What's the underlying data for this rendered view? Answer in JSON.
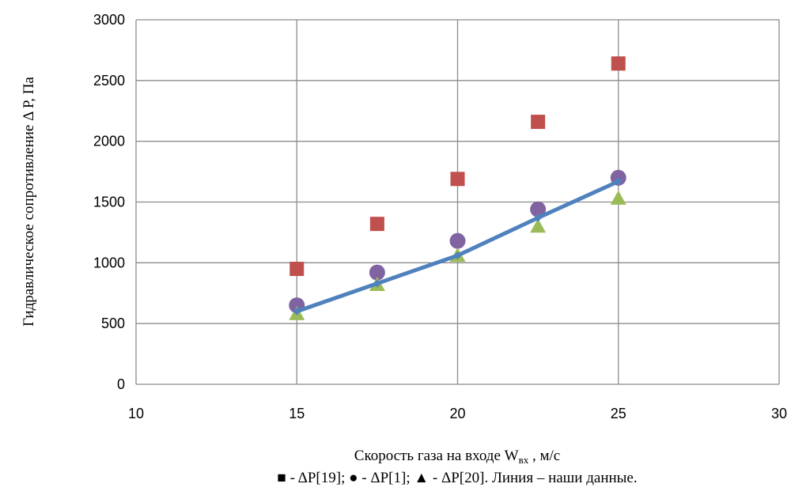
{
  "chart_data": {
    "type": "scatter",
    "xlabel": "Скорость газа на входе W",
    "xlabel_sub": "вх",
    "xlabel_unit": " , м/с",
    "ylabel": "Гидравлическое сопротивление Δ Р, Па",
    "caption": "■ - ΔP[19]; ● - ΔP[1]; ▲ - ΔP[20]. Линия – наши данные.",
    "xlim": [
      10,
      30
    ],
    "ylim": [
      0,
      3000
    ],
    "xticks": [
      "10",
      "15",
      "20",
      "25",
      "30"
    ],
    "yticks": [
      "0",
      "500",
      "1000",
      "1500",
      "2000",
      "2500",
      "3000"
    ],
    "grid": true,
    "series": [
      {
        "marker": "square",
        "color": "#c0504d",
        "x": [
          15,
          17.5,
          20,
          22.5,
          25
        ],
        "y": [
          950,
          1320,
          1690,
          2160,
          2640
        ]
      },
      {
        "marker": "circle",
        "color": "#8064a2",
        "x": [
          15,
          17.5,
          20,
          22.5,
          25
        ],
        "y": [
          650,
          920,
          1180,
          1440,
          1700
        ]
      },
      {
        "marker": "triangle",
        "color": "#9bbb59",
        "x": [
          15,
          17.5,
          20,
          22.5,
          25
        ],
        "y": [
          580,
          820,
          1060,
          1300,
          1530
        ]
      },
      {
        "marker": "line",
        "color": "#4f81bd",
        "x": [
          15,
          17.5,
          20,
          22.5,
          25
        ],
        "y": [
          600,
          830,
          1060,
          1370,
          1670
        ]
      }
    ]
  }
}
